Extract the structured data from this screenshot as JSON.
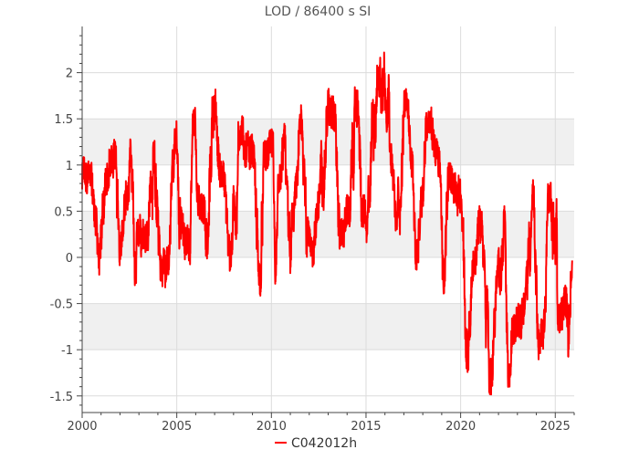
{
  "chart_data": {
    "type": "line",
    "title": "LOD / 86400 s SI",
    "xlabel": "",
    "ylabel": "",
    "xlim": [
      2000.0,
      2026.0
    ],
    "ylim": [
      -1.68,
      2.5
    ],
    "xticks": [
      2000,
      2005,
      2010,
      2015,
      2020,
      2025
    ],
    "yticks": [
      -1.5,
      -1,
      -0.5,
      0,
      0.5,
      1,
      1.5,
      2
    ],
    "ytick_labels": [
      "-1.5",
      "-1",
      "-0.5",
      "0",
      "0.5",
      "1",
      "1.5",
      "2"
    ],
    "xtick_labels": [
      "2000",
      "2005",
      "2010",
      "2015",
      "2020",
      "2025"
    ],
    "grid": true,
    "shaded_bands": [
      [
        -1,
        -0.5
      ],
      [
        0,
        0.5
      ],
      [
        1,
        1.5
      ]
    ],
    "legend_position": "bottom-center",
    "series": [
      {
        "name": "C042012h",
        "color": "#ff0000",
        "x": [
          2000.0,
          2000.5,
          2001.0,
          2001.5,
          2002.0,
          2002.5,
          2003.0,
          2003.5,
          2004.0,
          2004.5,
          2005.0,
          2005.5,
          2006.0,
          2006.5,
          2007.0,
          2007.5,
          2008.0,
          2008.5,
          2009.0,
          2009.5,
          2010.0,
          2010.5,
          2011.0,
          2011.5,
          2012.0,
          2012.5,
          2013.0,
          2013.5,
          2014.0,
          2014.5,
          2015.0,
          2015.5,
          2016.0,
          2016.5,
          2017.0,
          2017.5,
          2018.0,
          2018.5,
          2019.0,
          2019.5,
          2020.0,
          2020.5,
          2021.0,
          2021.5,
          2022.0,
          2022.5,
          2023.0,
          2023.5,
          2024.0,
          2024.5,
          2025.0,
          2025.5,
          2025.9
        ],
        "mean": [
          0.6,
          0.6,
          0.65,
          0.5,
          0.75,
          0.45,
          0.5,
          0.3,
          0.5,
          0.3,
          0.5,
          0.55,
          0.75,
          0.9,
          0.95,
          0.8,
          0.95,
          0.7,
          0.9,
          0.6,
          0.75,
          0.55,
          0.8,
          0.7,
          0.8,
          0.6,
          0.85,
          0.65,
          0.9,
          0.75,
          0.9,
          1.0,
          1.25,
          1.2,
          1.0,
          0.9,
          0.8,
          0.85,
          0.7,
          0.45,
          0.1,
          -0.3,
          -0.35,
          -0.5,
          -0.2,
          -0.6,
          -0.3,
          -0.2,
          -0.4,
          -0.3,
          -0.45,
          -0.1,
          -0.2
        ],
        "amplitude": [
          0.6,
          0.6,
          0.7,
          0.8,
          0.7,
          0.8,
          0.8,
          0.85,
          0.85,
          0.9,
          0.85,
          0.9,
          0.9,
          1.0,
          0.9,
          0.95,
          0.95,
          0.95,
          0.9,
          0.95,
          0.9,
          0.9,
          0.9,
          0.95,
          0.9,
          0.9,
          0.9,
          0.9,
          0.9,
          0.9,
          0.9,
          0.95,
          1.0,
          0.95,
          0.9,
          0.9,
          0.9,
          0.9,
          0.9,
          0.9,
          0.95,
          1.0,
          0.95,
          1.0,
          1.0,
          1.0,
          1.0,
          1.0,
          1.05,
          1.0,
          1.1,
          1.1,
          1.0
        ]
      }
    ]
  }
}
